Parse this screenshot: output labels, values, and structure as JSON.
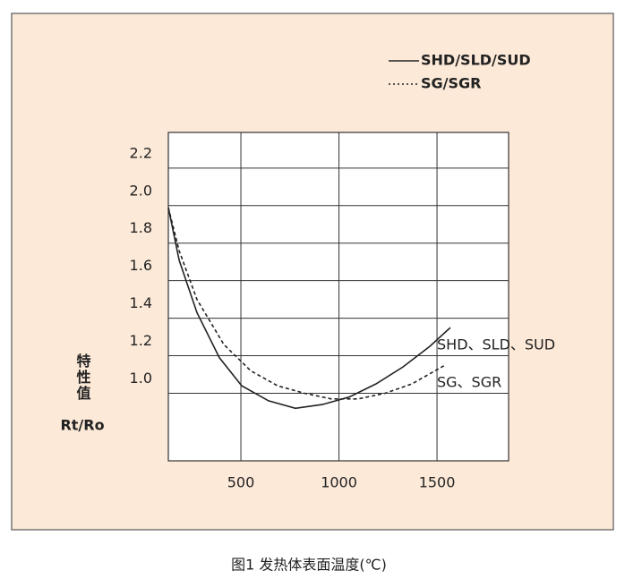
{
  "chart_data": {
    "type": "line",
    "caption": "图1 发热体表面温度(℃)",
    "ylabel": "特性值",
    "ylabel_unit": "Rt/Ro",
    "xlim": [
      130,
      1865
    ],
    "xticks": [
      500,
      1000,
      1500
    ],
    "ylim": [
      0.64,
      2.39
    ],
    "yticks": [
      {
        "value": 1.0,
        "label": "1.0"
      },
      {
        "value": 1.2,
        "label": "1.2"
      },
      {
        "value": 1.4,
        "label": "1.4"
      },
      {
        "value": 1.6,
        "label": "1.6"
      },
      {
        "value": 1.8,
        "label": "1.8"
      },
      {
        "value": 2.0,
        "label": "2.0"
      },
      2.2
    ],
    "grid": true,
    "series": [
      {
        "name": "SHD/SLD/SUD",
        "color": "#222222",
        "dash": false,
        "annotation": "SHD、SLD、SUD",
        "x": [
          130,
          185,
          276,
          390,
          504,
          641,
          778,
          915,
          1052,
          1189,
          1326,
          1463,
          1568
        ],
        "values": [
          1.99,
          1.71,
          1.43,
          1.19,
          1.04,
          0.96,
          0.92,
          0.94,
          0.98,
          1.05,
          1.14,
          1.25,
          1.35
        ]
      },
      {
        "name": "SG/SGR",
        "color": "#222222",
        "dash": true,
        "annotation": "SG、SGR",
        "x": [
          130,
          185,
          276,
          413,
          550,
          687,
          824,
          961,
          1098,
          1235,
          1372,
          1541
        ],
        "values": [
          1.99,
          1.76,
          1.5,
          1.26,
          1.12,
          1.04,
          1.0,
          0.97,
          0.97,
          1.0,
          1.05,
          1.15
        ]
      }
    ]
  }
}
